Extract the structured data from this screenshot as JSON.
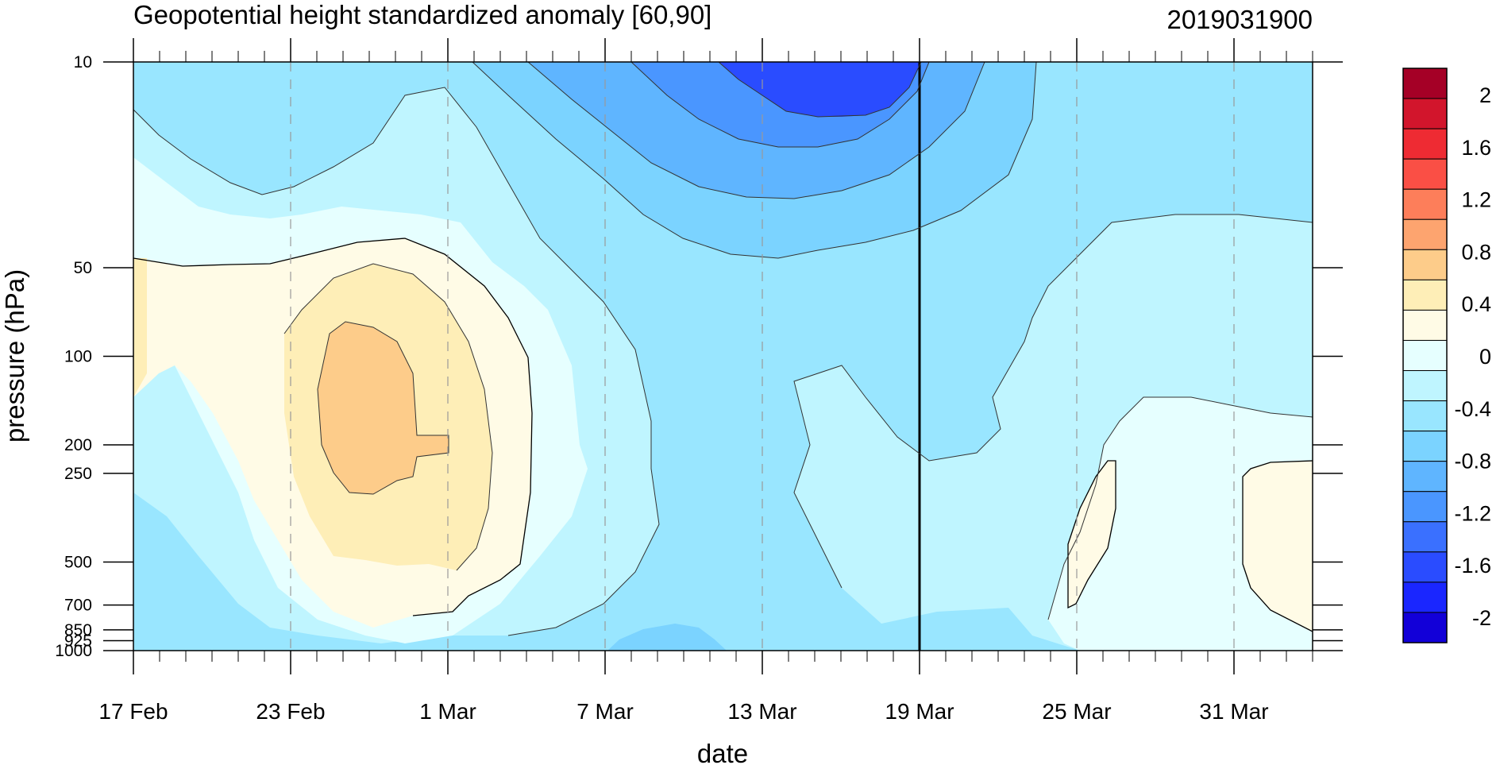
{
  "chart_data": {
    "type": "contour",
    "title": "Geopotential height standardized anomaly [60,90]",
    "date_label": "2019031900",
    "xlabel": "date",
    "ylabel": "pressure (hPa)",
    "y_scale": "log",
    "ylim": [
      1000,
      10
    ],
    "x_range_days": [
      0,
      45
    ],
    "x_start": "17 Feb",
    "x_ticks": [
      {
        "label": "17 Feb",
        "day": 0
      },
      {
        "label": "23 Feb",
        "day": 6
      },
      {
        "label": "1 Mar",
        "day": 12
      },
      {
        "label": "7 Mar",
        "day": 18
      },
      {
        "label": "13 Mar",
        "day": 24
      },
      {
        "label": "19 Mar",
        "day": 30
      },
      {
        "label": "25 Mar",
        "day": 36
      },
      {
        "label": "31 Mar",
        "day": 42
      }
    ],
    "y_ticks": [
      {
        "label": "10",
        "p": 10
      },
      {
        "label": "50",
        "p": 50
      },
      {
        "label": "100",
        "p": 100
      },
      {
        "label": "200",
        "p": 200
      },
      {
        "label": "250",
        "p": 250
      },
      {
        "label": "500",
        "p": 500
      },
      {
        "label": "700",
        "p": 700
      },
      {
        "label": "850",
        "p": 850
      },
      {
        "label": "925",
        "p": 925
      },
      {
        "label": "1000",
        "p": 1000
      }
    ],
    "current_date_line": {
      "day": 30,
      "label": "19 Mar"
    },
    "colorbar": {
      "labels": [
        "2",
        "1.6",
        "1.2",
        "0.8",
        "0.4",
        "0",
        "-0.4",
        "-0.8",
        "-1.2",
        "-1.6",
        "-2"
      ],
      "colors": [
        "#a50026",
        "#d2152c",
        "#ee2b33",
        "#fa4f45",
        "#fd7e5a",
        "#fda46f",
        "#fdcc8a",
        "#feeeb7",
        "#fffbe6",
        "#e6ffff",
        "#bff5ff",
        "#99e6ff",
        "#7bd3ff",
        "#5fb5ff",
        "#4a96ff",
        "#3a70ff",
        "#2a4cff",
        "#1a26ff",
        "#1200d8"
      ]
    },
    "regions": [
      {
        "level": "-0.4",
        "color": "#bff5ff"
      },
      {
        "level": "-0.6",
        "color": "#99e6ff"
      },
      {
        "level": "-0.8",
        "color": "#7bd3ff"
      },
      {
        "level": "-1.0",
        "color": "#5fb5ff"
      },
      {
        "level": "-1.2",
        "color": "#4a96ff"
      },
      {
        "level": "-1.4",
        "color": "#2a4cff"
      },
      {
        "level": "-0.2",
        "color": "#e6ffff"
      },
      {
        "level": "0",
        "color": "#fffbe6"
      },
      {
        "level": "0.2",
        "color": "#feeeb7"
      },
      {
        "level": "0.4",
        "color": "#fdcc8a"
      }
    ]
  }
}
